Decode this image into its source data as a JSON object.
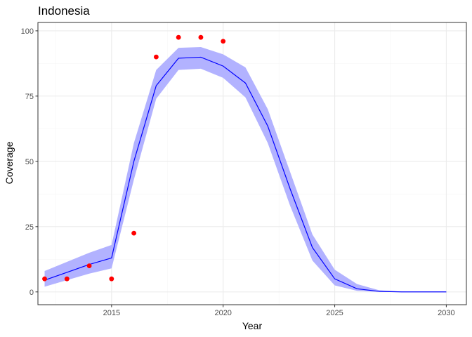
{
  "chart_data": {
    "type": "line",
    "title": "Indonesia",
    "xlabel": "Year",
    "ylabel": "Coverage",
    "xlim": [
      2011.7,
      2030.9
    ],
    "ylim": [
      -4.9,
      103.2
    ],
    "xticks": [
      2015,
      2020,
      2025,
      2030
    ],
    "yticks": [
      0,
      25,
      50,
      75,
      100
    ],
    "xtick_labels": [
      "2015",
      "2020",
      "2025",
      "2030"
    ],
    "ytick_labels": [
      "0",
      "25",
      "50",
      "75",
      "100"
    ],
    "grid": true,
    "legend": "none",
    "colors": {
      "line": "#0000ff",
      "band": "#b2b2ff",
      "points": "#ff0000",
      "grid_major": "#ebebeb",
      "grid_minor": "#f5f5f5",
      "panel_border": "#333333"
    },
    "series": [
      {
        "kind": "line",
        "x": [
          2012,
          2013,
          2014,
          2015,
          2016,
          2017,
          2018,
          2019,
          2020,
          2021,
          2022,
          2023,
          2024,
          2025,
          2026,
          2027,
          2028,
          2029,
          2030
        ],
        "values": [
          4.5,
          7.5,
          10.5,
          13,
          50,
          79,
          89.5,
          89.9,
          86.5,
          80,
          63.5,
          39.5,
          17,
          5,
          1.2,
          0.2,
          0,
          0,
          0
        ]
      },
      {
        "kind": "band",
        "x": [
          2012,
          2013,
          2014,
          2015,
          2016,
          2017,
          2018,
          2019,
          2020,
          2021,
          2022,
          2023,
          2024,
          2025,
          2026,
          2027,
          2028,
          2029,
          2030
        ],
        "lower": [
          2,
          4.5,
          7,
          9,
          43,
          74,
          85,
          85.5,
          82,
          74.5,
          57,
          33,
          12,
          2.5,
          0.4,
          0,
          0,
          0,
          0
        ],
        "upper": [
          8,
          11.5,
          15,
          18,
          57,
          85,
          93.5,
          93.8,
          91,
          86,
          70,
          46,
          22,
          8.5,
          3,
          0.6,
          0.1,
          0,
          0
        ]
      },
      {
        "kind": "scatter",
        "x": [
          2012,
          2013,
          2014,
          2015,
          2016,
          2017,
          2018,
          2019,
          2020
        ],
        "values": [
          5,
          5,
          10,
          5,
          22.5,
          90,
          97.5,
          97.5,
          96
        ]
      }
    ]
  }
}
